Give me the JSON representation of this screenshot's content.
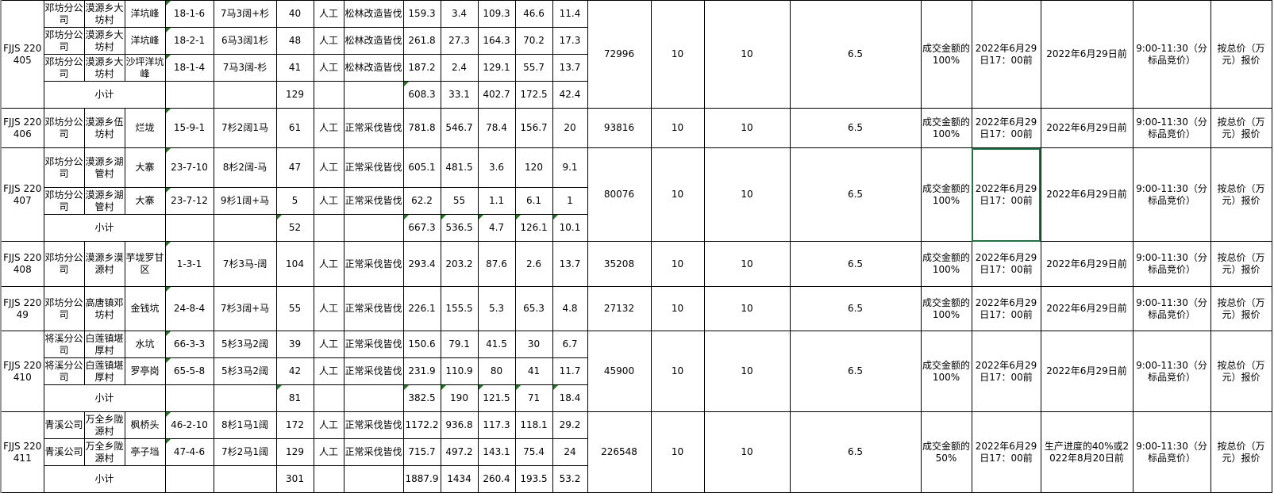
{
  "sheet": {
    "subtotal_label": "小计",
    "selected_accent": "#217346",
    "groups": [
      {
        "id": "FJJS 220405",
        "price": "72996",
        "col_a": "10",
        "col_b": "10",
        "col_c": "6.5",
        "deposit": "成交金额的100%",
        "payment_deadline": "2022年6月29日17：00前",
        "delivery_deadline": "2022年6月29日前",
        "bid_time": "9:00-11:30（分标品竞价）",
        "bid_method": "按总价（万元）报价",
        "rows": [
          {
            "company": "邓坊分公司",
            "town": "漠源乡大坊村",
            "site": "洋坑峰",
            "code": "18-1-6",
            "composition": "7马3阔+杉",
            "area": "40",
            "method": "人工",
            "type": "松林改造皆伐",
            "v1": "159.3",
            "v2": "3.4",
            "v3": "109.3",
            "v4": "46.6",
            "v5": "11.4"
          },
          {
            "company": "邓坊分公司",
            "town": "漠源乡大坊村",
            "site": "洋坑峰",
            "code": "18-2-1",
            "composition": "6马3阔1杉",
            "area": "48",
            "method": "人工",
            "type": "松林改造皆伐",
            "v1": "261.8",
            "v2": "27.3",
            "v3": "164.3",
            "v4": "70.2",
            "v5": "17.3"
          },
          {
            "company": "邓坊分公司",
            "town": "漠源乡大坊村",
            "site": "沙坪洋坑峰",
            "code": "18-1-4",
            "composition": "7马3阔-杉",
            "area": "41",
            "method": "人工",
            "type": "松林改造皆伐",
            "v1": "187.2",
            "v2": "2.4",
            "v3": "129.1",
            "v4": "55.7",
            "v5": "13.7"
          }
        ],
        "subtotal": {
          "area": "129",
          "v1": "608.3",
          "v2": "33.1",
          "v3": "402.7",
          "v4": "172.5",
          "v5": "42.4"
        }
      },
      {
        "id": "FJJS 220406",
        "price": "93816",
        "col_a": "10",
        "col_b": "10",
        "col_c": "6.5",
        "deposit": "成交金额的100%",
        "payment_deadline": "2022年6月29日17：00前",
        "delivery_deadline": "2022年6月29日前",
        "bid_time": "9:00-11:30（分标品竞价）",
        "bid_method": "按总价（万元）报价",
        "rows": [
          {
            "company": "邓坊分公司",
            "town": "漠源乡伍坊村",
            "site": "烂垅",
            "code": "15-9-1",
            "composition": "7杉2阔1马",
            "area": "61",
            "method": "人工",
            "type": "正常采伐皆伐",
            "v1": "781.8",
            "v2": "546.7",
            "v3": "78.4",
            "v4": "156.7",
            "v5": "20"
          }
        ]
      },
      {
        "id": "FJJS 220407",
        "price": "80076",
        "col_a": "10",
        "col_b": "10",
        "col_c": "6.5",
        "deposit": "成交金额的100%",
        "payment_deadline": "2022年6月29日17：00前",
        "delivery_deadline": "2022年6月29日前",
        "bid_time": "9:00-11:30（分标品竞价）",
        "bid_method": "按总价（万元）报价",
        "rows": [
          {
            "company": "邓坊分公司",
            "town": "漠源乡湖管村",
            "site": "大寨",
            "code": "23-7-10",
            "composition": "8杉2阔-马",
            "area": "47",
            "method": "人工",
            "type": "正常采伐皆伐",
            "v1": "605.1",
            "v2": "481.5",
            "v3": "3.6",
            "v4": "120",
            "v5": "9.1"
          },
          {
            "company": "邓坊分公司",
            "town": "漠源乡湖管村",
            "site": "大寨",
            "code": "23-7-12",
            "composition": "9杉1阔+马",
            "area": "5",
            "method": "人工",
            "type": "正常采伐皆伐",
            "v1": "62.2",
            "v2": "55",
            "v3": "1.1",
            "v4": "6.1",
            "v5": "1"
          }
        ],
        "subtotal": {
          "area": "52",
          "v1": "667.3",
          "v2": "536.5",
          "v3": "4.7",
          "v4": "126.1",
          "v5": "10.1"
        }
      },
      {
        "id": "FJJS 220408",
        "price": "35208",
        "col_a": "10",
        "col_b": "10",
        "col_c": "6.5",
        "deposit": "成交金额的100%",
        "payment_deadline": "2022年6月29日17：00前",
        "delivery_deadline": "2022年6月29日前",
        "bid_time": "9:00-11:30（分标品竞价）",
        "bid_method": "按总价（万元）报价",
        "rows": [
          {
            "company": "邓坊分公司",
            "town": "漠源乡漠源村",
            "site": "芋垅罗甘区",
            "code": "1-3-1",
            "composition": "7杉3马-阔",
            "area": "104",
            "method": "人工",
            "type": "正常采伐皆伐",
            "v1": "293.4",
            "v2": "203.2",
            "v3": "87.6",
            "v4": "2.6",
            "v5": "13.7"
          }
        ]
      },
      {
        "id": "FJJS 22049",
        "price": "27132",
        "col_a": "10",
        "col_b": "10",
        "col_c": "6.5",
        "deposit": "成交金额的100%",
        "payment_deadline": "2022年6月29日17：00前",
        "delivery_deadline": "2022年6月29日前",
        "bid_time": "9:00-11:30（分标品竞价）",
        "bid_method": "按总价（万元）报价",
        "rows": [
          {
            "company": "邓坊分公司",
            "town": "高唐镇邓坊村",
            "site": "金钱坑",
            "code": "24-8-4",
            "composition": "7杉3阔+马",
            "area": "55",
            "method": "人工",
            "type": "正常采伐皆伐",
            "v1": "226.1",
            "v2": "155.5",
            "v3": "5.3",
            "v4": "65.3",
            "v5": "4.8"
          }
        ]
      },
      {
        "id": "FJJS 220410",
        "price": "45900",
        "col_a": "10",
        "col_b": "10",
        "col_c": "6.5",
        "deposit": "成交金额的100%",
        "payment_deadline": "2022年6月29日17：00前",
        "delivery_deadline": "2022年6月29日前",
        "bid_time": "9:00-11:30（分标品竞价）",
        "bid_method": "按总价（万元）报价",
        "rows": [
          {
            "company": "将溪分公司",
            "town": "白莲镇堪厚村",
            "site": "水坑",
            "code": "66-3-3",
            "composition": "5杉3马2阔",
            "area": "39",
            "method": "人工",
            "type": "正常采伐皆伐",
            "v1": "150.6",
            "v2": "79.1",
            "v3": "41.5",
            "v4": "30",
            "v5": "6.7"
          },
          {
            "company": "将溪分公司",
            "town": "白莲镇堪厚村",
            "site": "罗亭岗",
            "code": "65-5-8",
            "composition": "5杉3马2阔",
            "area": "42",
            "method": "人工",
            "type": "正常采伐皆伐",
            "v1": "231.9",
            "v2": "110.9",
            "v3": "80",
            "v4": "41",
            "v5": "11.7"
          }
        ],
        "subtotal": {
          "area": "81",
          "v1": "382.5",
          "v2": "190",
          "v3": "121.5",
          "v4": "71",
          "v5": "18.4"
        }
      },
      {
        "id": "FJJS 220411",
        "price": "226548",
        "col_a": "10",
        "col_b": "10",
        "col_c": "6.5",
        "deposit": "成交金额的50%",
        "payment_deadline": "2022年6月29日17：00前",
        "delivery_deadline": "生产进度的40%或2022年8月20日前",
        "bid_time": "9:00-11:30（分标品竞价）",
        "bid_method": "按总价（万元）报价",
        "rows": [
          {
            "company": "青溪公司",
            "town": "万全乡陇源村",
            "site": "枫桥头",
            "code": "46-2-10",
            "composition": "8杉1马1阔",
            "area": "172",
            "method": "人工",
            "type": "正常采伐皆伐",
            "v1": "1172.2",
            "v2": "936.8",
            "v3": "117.3",
            "v4": "118.1",
            "v5": "29.2"
          },
          {
            "company": "青溪公司",
            "town": "万全乡陇源村",
            "site": "亭子垱",
            "code": "47-4-6",
            "composition": "7杉2马1阔",
            "area": "129",
            "method": "人工",
            "type": "正常采伐皆伐",
            "v1": "715.7",
            "v2": "497.2",
            "v3": "143.1",
            "v4": "75.4",
            "v5": "24"
          }
        ],
        "subtotal": {
          "area": "301",
          "v1": "1887.9",
          "v2": "1434",
          "v3": "260.4",
          "v4": "193.5",
          "v5": "53.2"
        }
      }
    ]
  }
}
